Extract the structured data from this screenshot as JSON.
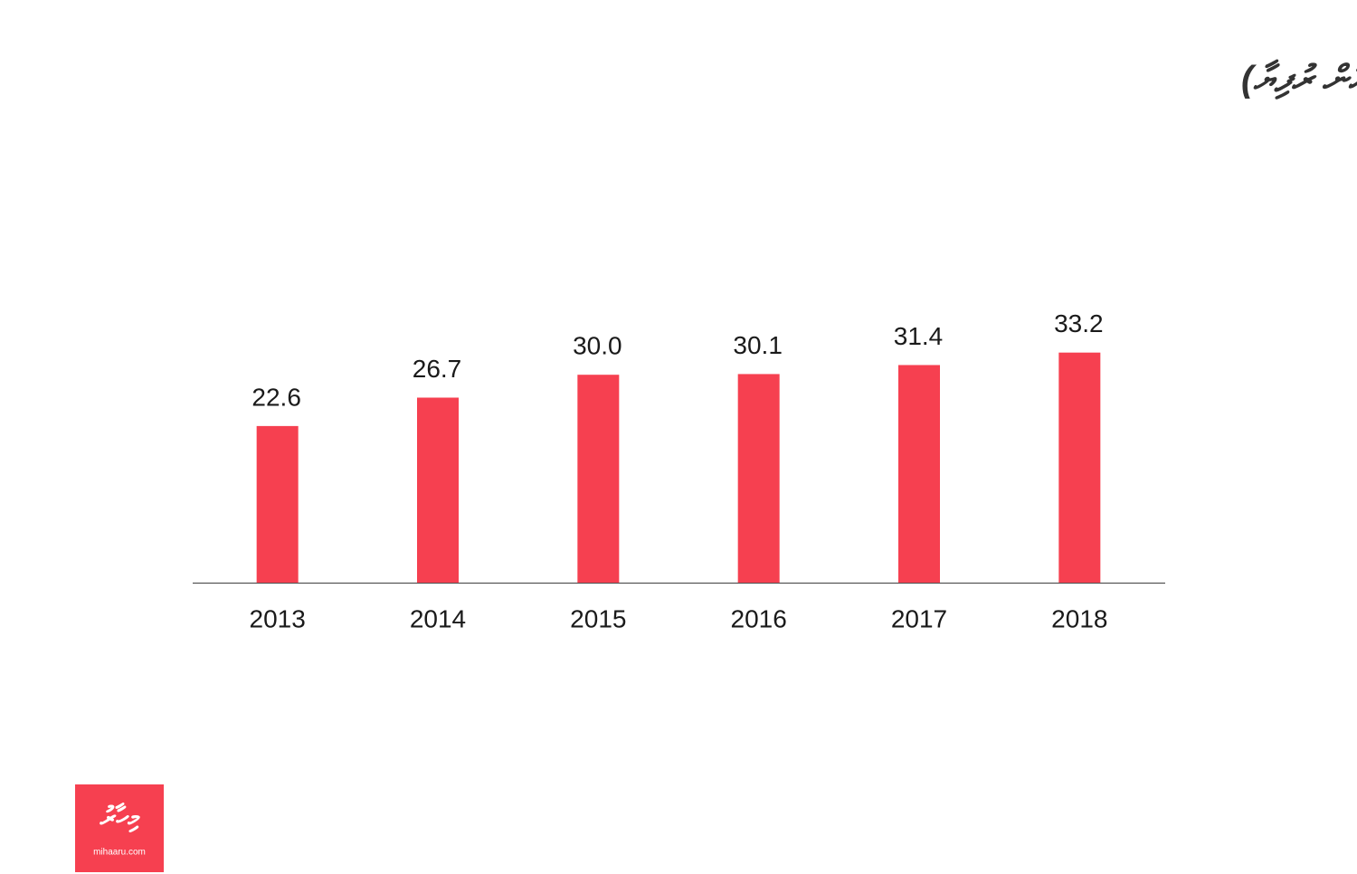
{
  "chart_data": {
    "type": "bar",
    "title": "ޓޫރިޒަމް ސެކްޓަރުން ލިބުނު އާމްދަނީ (ބިލިއަން ރުފިޔާ)",
    "categories": [
      "2013",
      "2014",
      "2015",
      "2016",
      "2017",
      "2018"
    ],
    "values": [
      22.6,
      26.7,
      30.0,
      30.1,
      31.4,
      33.2
    ],
    "value_labels": [
      "22.6",
      "26.7",
      "30.0",
      "30.1",
      "31.4",
      "33.2"
    ],
    "color": "#f64050"
  },
  "logo": {
    "name": "މިހާރު",
    "url": "mihaaru.com"
  }
}
